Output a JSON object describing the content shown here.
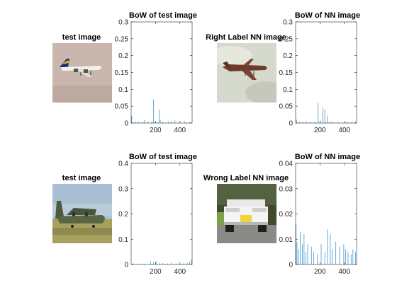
{
  "panels": [
    {
      "title": "test image"
    },
    {
      "title": "Right Label NN image"
    },
    {
      "title": "test image"
    },
    {
      "title": "Wrong Label NN image"
    }
  ],
  "chart_data": [
    {
      "type": "bar",
      "title": "BoW of test image",
      "xlabel": "",
      "ylabel": "",
      "xlim": [
        1,
        500
      ],
      "ylim": [
        0,
        0.3
      ],
      "xticks": [
        200,
        400
      ],
      "yticks": [
        0,
        0.05,
        0.1,
        0.15,
        0.2,
        0.25,
        0.3
      ],
      "color": "#0072BD",
      "peaks": [
        [
          6,
          0.02
        ],
        [
          33,
          0.006
        ],
        [
          60,
          0.004
        ],
        [
          98,
          0.004
        ],
        [
          110,
          0.009
        ],
        [
          140,
          0.005
        ],
        [
          170,
          0.005
        ],
        [
          185,
          0.07
        ],
        [
          200,
          0.006
        ],
        [
          230,
          0.04
        ],
        [
          240,
          0.008
        ],
        [
          260,
          0.004
        ],
        [
          305,
          0.004
        ],
        [
          330,
          0.005
        ],
        [
          360,
          0.008
        ],
        [
          400,
          0.004
        ],
        [
          440,
          0.005
        ],
        [
          480,
          0.004
        ]
      ]
    },
    {
      "type": "bar",
      "title": "BoW of NN image",
      "xlabel": "",
      "ylabel": "",
      "xlim": [
        1,
        500
      ],
      "ylim": [
        0,
        0.3
      ],
      "xticks": [
        200,
        400
      ],
      "yticks": [
        0,
        0.05,
        0.1,
        0.15,
        0.2,
        0.25,
        0.3
      ],
      "color": "#0072BD",
      "peaks": [
        [
          10,
          0.01
        ],
        [
          35,
          0.005
        ],
        [
          60,
          0.004
        ],
        [
          90,
          0.005
        ],
        [
          120,
          0.004
        ],
        [
          160,
          0.005
        ],
        [
          185,
          0.06
        ],
        [
          200,
          0.008
        ],
        [
          225,
          0.045
        ],
        [
          240,
          0.04
        ],
        [
          262,
          0.022
        ],
        [
          280,
          0.004
        ],
        [
          300,
          0.005
        ],
        [
          350,
          0.003
        ],
        [
          400,
          0.003
        ],
        [
          420,
          0.005
        ],
        [
          460,
          0.004
        ],
        [
          490,
          0.004
        ]
      ]
    },
    {
      "type": "bar",
      "title": "BoW of test image",
      "xlabel": "",
      "ylabel": "",
      "xlim": [
        1,
        500
      ],
      "ylim": [
        0,
        0.4
      ],
      "xticks": [
        200,
        400
      ],
      "yticks": [
        0,
        0.1,
        0.2,
        0.3,
        0.4
      ],
      "color": "#0072BD",
      "peaks": [
        [
          20,
          0.004
        ],
        [
          60,
          0.003
        ],
        [
          110,
          0.003
        ],
        [
          160,
          0.012
        ],
        [
          185,
          0.01
        ],
        [
          205,
          0.014
        ],
        [
          230,
          0.006
        ],
        [
          260,
          0.006
        ],
        [
          300,
          0.004
        ],
        [
          330,
          0.007
        ],
        [
          370,
          0.004
        ],
        [
          400,
          0.005
        ],
        [
          430,
          0.004
        ],
        [
          460,
          0.006
        ],
        [
          480,
          0.01
        ],
        [
          495,
          0.02
        ]
      ]
    },
    {
      "type": "bar",
      "title": "BoW of NN image",
      "xlabel": "",
      "ylabel": "",
      "xlim": [
        1,
        500
      ],
      "ylim": [
        0,
        0.04
      ],
      "xticks": [
        200,
        400
      ],
      "yticks": [
        0,
        0.01,
        0.02,
        0.03,
        0.04
      ],
      "color": "#0072BD",
      "peaks": [
        [
          5,
          0.016
        ],
        [
          12,
          0.009
        ],
        [
          25,
          0.006
        ],
        [
          40,
          0.013
        ],
        [
          55,
          0.008
        ],
        [
          70,
          0.012
        ],
        [
          85,
          0.005
        ],
        [
          100,
          0.008
        ],
        [
          130,
          0.007
        ],
        [
          150,
          0.005
        ],
        [
          180,
          0.004
        ],
        [
          210,
          0.008
        ],
        [
          240,
          0.005
        ],
        [
          262,
          0.014
        ],
        [
          285,
          0.012
        ],
        [
          300,
          0.006
        ],
        [
          330,
          0.009
        ],
        [
          360,
          0.007
        ],
        [
          395,
          0.008
        ],
        [
          410,
          0.006
        ],
        [
          430,
          0.005
        ],
        [
          455,
          0.004
        ],
        [
          470,
          0.006
        ],
        [
          490,
          0.005
        ]
      ]
    }
  ]
}
